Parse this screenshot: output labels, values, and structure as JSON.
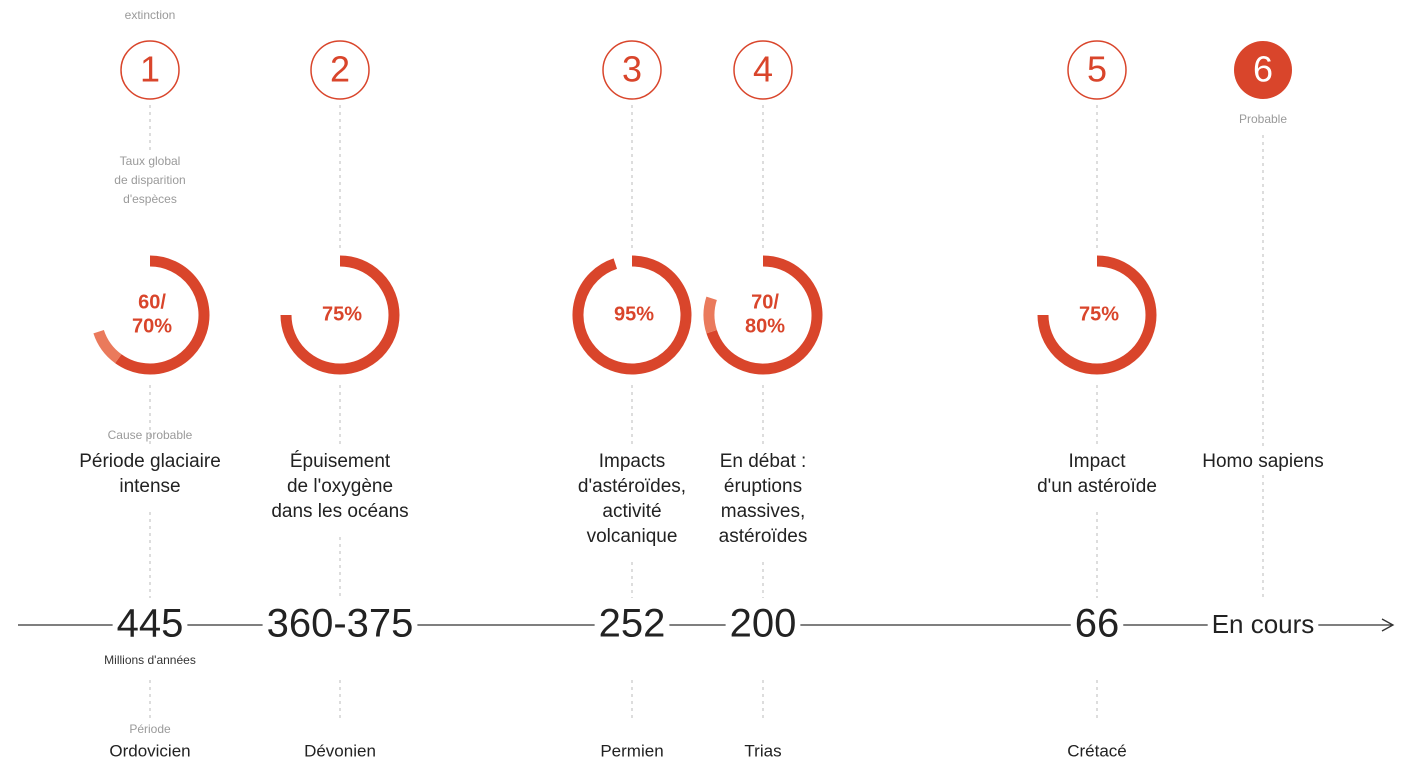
{
  "header": {
    "label": "extinction"
  },
  "labels": {
    "rate": [
      "Taux global",
      "de disparition",
      "d'espèces"
    ],
    "cause": "Cause probable",
    "unit": "Millions d'années",
    "period": "Période"
  },
  "events": [
    {
      "number": "1",
      "rate": [
        60,
        70
      ],
      "rate_label": [
        "60/",
        "70%"
      ],
      "cause": [
        "Période glaciaire",
        "intense"
      ],
      "date": "445",
      "period": "Ordovicien"
    },
    {
      "number": "2",
      "rate": [
        75
      ],
      "rate_label": [
        "75%"
      ],
      "cause": [
        "Épuisement",
        "de l'oxygène",
        "dans les océans"
      ],
      "date": "360-375",
      "period": "Dévonien"
    },
    {
      "number": "3",
      "rate": [
        95
      ],
      "rate_label": [
        "95%"
      ],
      "cause": [
        "Impacts",
        "d'astéroïdes,",
        "activité",
        "volcanique"
      ],
      "date": "252",
      "period": "Permien"
    },
    {
      "number": "4",
      "rate": [
        70,
        80
      ],
      "rate_label": [
        "70/",
        "80%"
      ],
      "cause": [
        "En débat :",
        "éruptions",
        "massives,",
        "astéroïdes"
      ],
      "date": "200",
      "period": "Trias"
    },
    {
      "number": "5",
      "rate": [
        75
      ],
      "rate_label": [
        "75%"
      ],
      "cause": [
        "Impact",
        "d'un astéroïde"
      ],
      "date": "66",
      "period": "Crétacé"
    },
    {
      "number": "6",
      "status": "Probable",
      "cause": [
        "Homo sapiens"
      ],
      "date": "En cours"
    }
  ]
}
